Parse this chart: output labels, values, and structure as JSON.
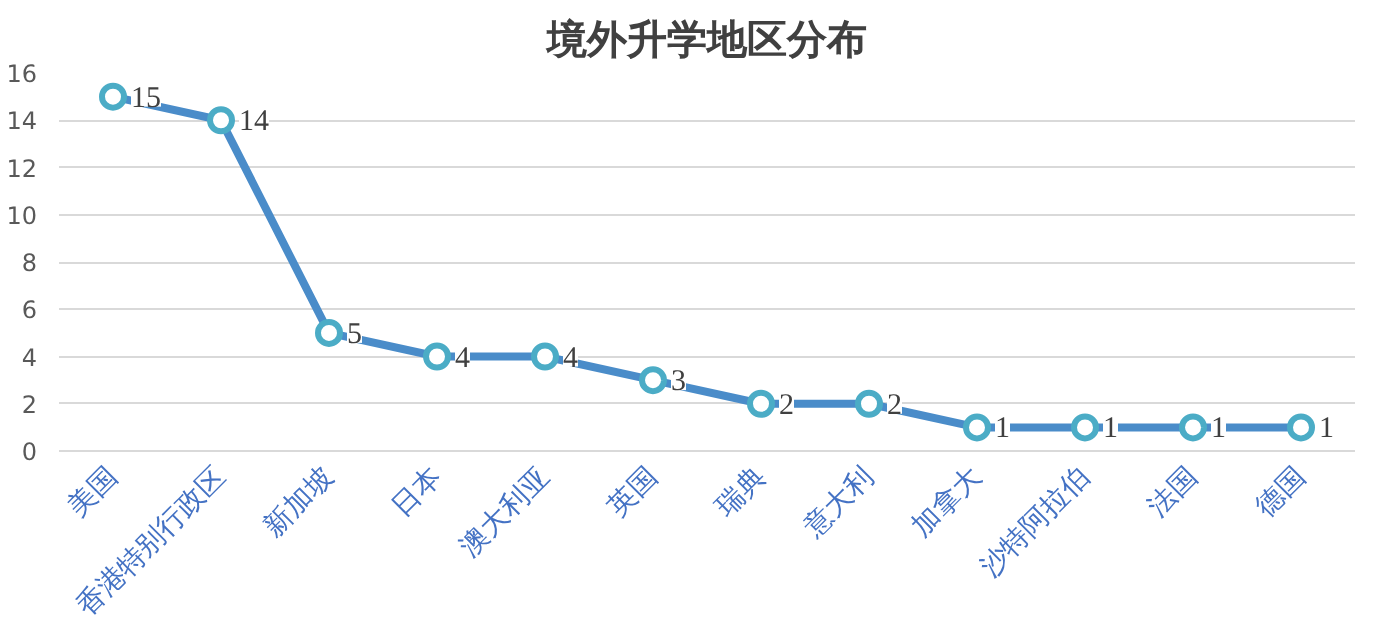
{
  "chart_data": {
    "type": "line",
    "title": "境外升学地区分布",
    "categories": [
      "美国",
      "香港特别行政区",
      "新加坡",
      "日本",
      "澳大利亚",
      "英国",
      "瑞典",
      "意大利",
      "加拿大",
      "沙特阿拉伯",
      "法国",
      "德国"
    ],
    "series": [
      {
        "color": "#4a8cc9",
        "values": [
          15,
          14,
          5,
          4,
          4,
          3,
          2,
          2,
          1,
          1,
          1,
          1
        ]
      }
    ],
    "ylim": [
      0,
      16
    ],
    "yticks": [
      0,
      2,
      4,
      6,
      8,
      10,
      12,
      14,
      16
    ],
    "grid": "y",
    "marker": "circle",
    "line_style": "solid",
    "data_labels": true
  }
}
